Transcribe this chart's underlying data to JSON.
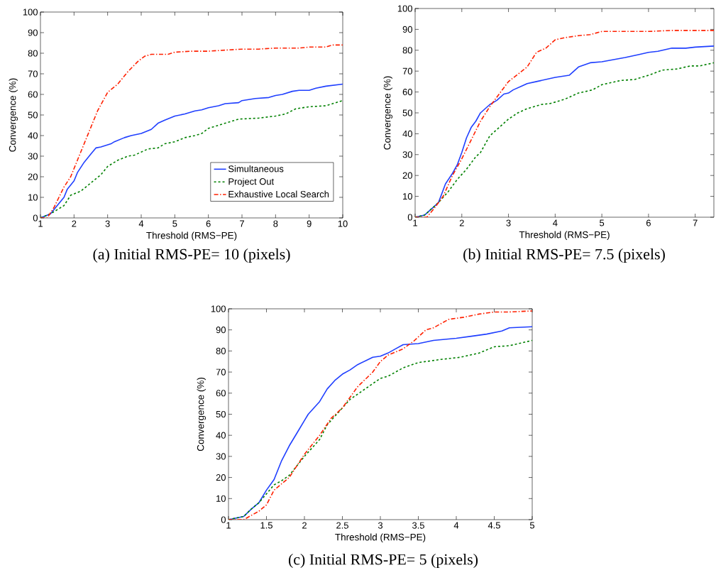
{
  "chart_data": [
    {
      "type": "line",
      "xlabel": "Threshold (RMS−PE)",
      "ylabel": "Convergence (%)",
      "annotations": [
        "(a) Initial RMS-PE= 10 (pixels)"
      ],
      "xlim": [
        1,
        10
      ],
      "ylim": [
        0,
        100
      ],
      "xticks": [
        1,
        2,
        3,
        4,
        5,
        6,
        7,
        8,
        9,
        10
      ],
      "yticks": [
        0,
        10,
        20,
        30,
        40,
        50,
        60,
        70,
        80,
        90,
        100
      ],
      "legend": "bottom right",
      "series": [
        {
          "name": "Simultaneous",
          "color": "#1f3fff",
          "line_style": "solid",
          "x": [
            1,
            1.3,
            1.5,
            1.7,
            1.8,
            2,
            2.1,
            2.3,
            2.5,
            2.65,
            2.8,
            3,
            3.1,
            3.2,
            3.5,
            3.7,
            4,
            4.3,
            4.5,
            4.7,
            5,
            5.3,
            5.6,
            5.8,
            6,
            6.3,
            6.5,
            6.9,
            7,
            7.4,
            7.8,
            8,
            8.2,
            8.5,
            8.7,
            9,
            9.2,
            9.5,
            10
          ],
          "values": [
            0,
            2,
            6,
            10,
            14,
            18,
            22,
            27,
            31,
            34,
            34.5,
            35.5,
            36,
            37,
            39,
            40,
            41,
            43,
            46,
            47.5,
            49.5,
            50.5,
            52,
            52.5,
            53.5,
            54.5,
            55.5,
            56,
            57,
            58,
            58.5,
            59.5,
            60,
            61.5,
            62,
            62,
            63,
            64,
            65
          ]
        },
        {
          "name": "Project Out",
          "color": "#008000",
          "line_style": "dashed",
          "x": [
            1,
            1.3,
            1.5,
            1.7,
            1.9,
            2.2,
            2.5,
            2.8,
            3,
            3.3,
            3.6,
            3.8,
            4,
            4.2,
            4.5,
            4.7,
            5,
            5.3,
            5.6,
            5.8,
            6,
            6.5,
            6.9,
            7.5,
            8,
            8.3,
            8.6,
            9,
            9.5,
            10
          ],
          "values": [
            0,
            2,
            4,
            6,
            11,
            13,
            17,
            21,
            25,
            28,
            30,
            30.5,
            32,
            33.5,
            34,
            36,
            37,
            39,
            40,
            41,
            43.5,
            46,
            48,
            48.5,
            49.5,
            50.5,
            53,
            54,
            54.5,
            57
          ]
        },
        {
          "name": "Exhaustive Local Search",
          "color": "#ff2000",
          "line_style": "dashdot",
          "x": [
            1,
            1.2,
            1.4,
            1.55,
            1.7,
            1.9,
            2.1,
            2.4,
            2.7,
            3,
            3.3,
            3.6,
            3.9,
            4.1,
            4.3,
            4.8,
            5,
            5.5,
            6,
            6.5,
            7,
            7.5,
            8,
            8.7,
            9,
            9.5,
            9.7,
            10
          ],
          "values": [
            0,
            0,
            5,
            10,
            15,
            20,
            28,
            40,
            52,
            61,
            65,
            71,
            76,
            78.5,
            79.5,
            79.5,
            80.5,
            81,
            81,
            81.5,
            82,
            82,
            82.5,
            82.5,
            83,
            83,
            84,
            84
          ]
        }
      ]
    },
    {
      "type": "line",
      "xlabel": "Threshold (RMS−PE)",
      "ylabel": "Convergence (%)",
      "annotations": [
        "(b) Initial RMS-PE= 7.5 (pixels)"
      ],
      "xlim": [
        1,
        7.4
      ],
      "ylim": [
        0,
        100
      ],
      "xticks": [
        1,
        2,
        3,
        4,
        5,
        6,
        7
      ],
      "yticks": [
        0,
        10,
        20,
        30,
        40,
        50,
        60,
        70,
        80,
        90,
        100
      ],
      "series": [
        {
          "color": "#1f3fff",
          "line_style": "solid",
          "x": [
            1,
            1.2,
            1.4,
            1.5,
            1.55,
            1.65,
            1.8,
            1.9,
            2,
            2.1,
            2.2,
            2.3,
            2.4,
            2.6,
            2.75,
            2.9,
            3,
            3.1,
            3.3,
            3.4,
            3.6,
            3.8,
            4,
            4.3,
            4.5,
            4.75,
            5,
            5.5,
            5.8,
            6,
            6.2,
            6.5,
            6.8,
            7,
            7.4
          ],
          "values": [
            0,
            1,
            5,
            7,
            10,
            16,
            21,
            25,
            31,
            38,
            43,
            46,
            50,
            54,
            56,
            59,
            59.5,
            61,
            63,
            64,
            65,
            66,
            67,
            68,
            72,
            74,
            74.5,
            76.5,
            78,
            79,
            79.5,
            81,
            81,
            81.5,
            82
          ]
        },
        {
          "color": "#008000",
          "line_style": "dashed",
          "x": [
            1,
            1.2,
            1.5,
            1.7,
            1.9,
            2.1,
            2.3,
            2.4,
            2.5,
            2.6,
            2.8,
            3,
            3.2,
            3.4,
            3.7,
            3.9,
            4.2,
            4.5,
            4.8,
            5,
            5.4,
            5.7,
            6,
            6.3,
            6.6,
            6.9,
            7.1,
            7.4
          ],
          "values": [
            0,
            1,
            7,
            12,
            18,
            23,
            29,
            31,
            35,
            39,
            43,
            47,
            50,
            52,
            54,
            54.5,
            56.5,
            59.5,
            61,
            63.5,
            65.5,
            66,
            68,
            70.5,
            71,
            72.5,
            72.5,
            74
          ]
        },
        {
          "color": "#ff2000",
          "line_style": "dashdot",
          "x": [
            1,
            1.25,
            1.4,
            1.6,
            1.8,
            2,
            2.2,
            2.4,
            2.6,
            2.8,
            3,
            3.2,
            3.4,
            3.6,
            3.8,
            4,
            4.2,
            4.5,
            4.75,
            5,
            5.5,
            6,
            6.5,
            7,
            7.4
          ],
          "values": [
            0,
            0,
            4,
            10,
            20,
            28,
            37,
            46,
            53,
            59,
            65,
            68.5,
            72,
            79,
            81,
            85,
            86,
            87,
            87.5,
            89,
            89,
            89,
            89.5,
            89.5,
            89.5
          ]
        }
      ]
    },
    {
      "type": "line",
      "xlabel": "Threshold (RMS−PE)",
      "ylabel": "Convergence (%)",
      "annotations": [
        "(c) Initial RMS-PE= 5 (pixels)"
      ],
      "xlim": [
        1,
        5
      ],
      "ylim": [
        0,
        100
      ],
      "xticks": [
        1,
        1.5,
        2,
        2.5,
        3,
        3.5,
        4,
        4.5,
        5
      ],
      "yticks": [
        0,
        10,
        20,
        30,
        40,
        50,
        60,
        70,
        80,
        90,
        100
      ],
      "series": [
        {
          "color": "#1f3fff",
          "line_style": "solid",
          "x": [
            1,
            1.2,
            1.3,
            1.4,
            1.5,
            1.6,
            1.7,
            1.8,
            1.9,
            2,
            2.05,
            2.2,
            2.3,
            2.4,
            2.5,
            2.6,
            2.7,
            2.9,
            3,
            3.1,
            3.2,
            3.3,
            3.5,
            3.7,
            4,
            4.2,
            4.4,
            4.6,
            4.7,
            5
          ],
          "values": [
            0,
            1.5,
            5,
            8,
            14,
            19,
            28,
            35,
            41,
            47,
            50,
            56,
            62,
            66,
            69,
            71,
            73.5,
            77,
            77.5,
            79,
            81,
            83,
            83.5,
            85,
            86,
            87,
            88,
            89.5,
            91,
            91.5
          ]
        },
        {
          "color": "#008000",
          "line_style": "dashed",
          "x": [
            1,
            1.2,
            1.3,
            1.4,
            1.6,
            1.7,
            1.8,
            2,
            2.2,
            2.3,
            2.5,
            2.6,
            2.8,
            3,
            3.1,
            3.3,
            3.5,
            3.6,
            3.8,
            4.05,
            4.3,
            4.5,
            4.7,
            5
          ],
          "values": [
            0,
            1.5,
            5,
            8,
            16.5,
            18.5,
            21,
            30,
            38,
            45,
            53,
            57,
            62,
            67,
            68,
            72,
            74.5,
            75,
            76,
            77,
            79,
            82,
            82.5,
            85
          ]
        },
        {
          "color": "#ff2000",
          "line_style": "dashdot",
          "x": [
            1,
            1.2,
            1.4,
            1.5,
            1.6,
            1.8,
            2,
            2.2,
            2.35,
            2.5,
            2.6,
            2.7,
            2.9,
            3,
            3.1,
            3.3,
            3.45,
            3.6,
            3.7,
            3.9,
            4.1,
            4.3,
            4.5,
            4.7,
            5
          ],
          "values": [
            0,
            0,
            4,
            7,
            14,
            20,
            31,
            40,
            48,
            53,
            58,
            63,
            70,
            75,
            78,
            81,
            85,
            90,
            91,
            95,
            96,
            97.5,
            98.5,
            98.5,
            99
          ]
        }
      ]
    }
  ]
}
